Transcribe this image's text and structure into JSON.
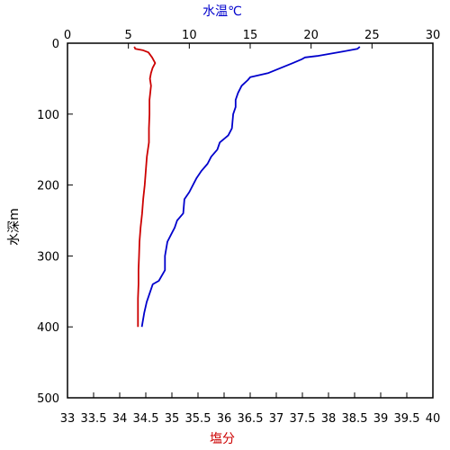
{
  "chart_data": {
    "type": "line",
    "title": "",
    "xlabel_bottom": "塩分",
    "xlabel_top": "水温℃",
    "ylabel": "水深m",
    "xlim_bottom": [
      33,
      40
    ],
    "xlim_top": [
      0,
      30
    ],
    "ylim": [
      0,
      500
    ],
    "y_inverted": true,
    "grid": false,
    "legend": "none",
    "x_bottom_ticks": [
      "33",
      "33.5",
      "34",
      "34.5",
      "35",
      "35.5",
      "36",
      "36.5",
      "37",
      "37.5",
      "38",
      "38.5",
      "39",
      "39.5",
      "40"
    ],
    "x_top_ticks": [
      "0",
      "5",
      "10",
      "15",
      "20",
      "25",
      "30"
    ],
    "y_ticks": [
      "0",
      "100",
      "200",
      "300",
      "400",
      "500"
    ],
    "colors": {
      "salinity": "#cc0000",
      "temperature": "#0000cc",
      "xlabel_bottom": "#cc0000",
      "xlabel_top": "#0000cc"
    },
    "series": [
      {
        "axis": "bottom",
        "color": "#cc0000",
        "points": [
          {
            "x": 34.28,
            "y": 5
          },
          {
            "x": 34.3,
            "y": 8
          },
          {
            "x": 34.45,
            "y": 10
          },
          {
            "x": 34.55,
            "y": 13
          },
          {
            "x": 34.62,
            "y": 20
          },
          {
            "x": 34.68,
            "y": 28
          },
          {
            "x": 34.63,
            "y": 35
          },
          {
            "x": 34.6,
            "y": 42
          },
          {
            "x": 34.58,
            "y": 50
          },
          {
            "x": 34.6,
            "y": 60
          },
          {
            "x": 34.57,
            "y": 80
          },
          {
            "x": 34.57,
            "y": 100
          },
          {
            "x": 34.56,
            "y": 120
          },
          {
            "x": 34.56,
            "y": 140
          },
          {
            "x": 34.52,
            "y": 160
          },
          {
            "x": 34.5,
            "y": 180
          },
          {
            "x": 34.48,
            "y": 200
          },
          {
            "x": 34.45,
            "y": 220
          },
          {
            "x": 34.43,
            "y": 240
          },
          {
            "x": 34.4,
            "y": 260
          },
          {
            "x": 34.38,
            "y": 280
          },
          {
            "x": 34.37,
            "y": 300
          },
          {
            "x": 34.36,
            "y": 320
          },
          {
            "x": 34.36,
            "y": 340
          },
          {
            "x": 34.35,
            "y": 360
          },
          {
            "x": 34.35,
            "y": 380
          },
          {
            "x": 34.35,
            "y": 400
          }
        ]
      },
      {
        "axis": "top",
        "color": "#0000cc",
        "points": [
          {
            "x": 24.0,
            "y": 5
          },
          {
            "x": 23.8,
            "y": 8
          },
          {
            "x": 22.5,
            "y": 12
          },
          {
            "x": 20.5,
            "y": 18
          },
          {
            "x": 19.5,
            "y": 20
          },
          {
            "x": 19.2,
            "y": 23
          },
          {
            "x": 18.5,
            "y": 28
          },
          {
            "x": 17.5,
            "y": 35
          },
          {
            "x": 16.5,
            "y": 42
          },
          {
            "x": 15.0,
            "y": 48
          },
          {
            "x": 14.8,
            "y": 52
          },
          {
            "x": 14.3,
            "y": 60
          },
          {
            "x": 14.0,
            "y": 70
          },
          {
            "x": 13.8,
            "y": 80
          },
          {
            "x": 13.8,
            "y": 90
          },
          {
            "x": 13.6,
            "y": 100
          },
          {
            "x": 13.5,
            "y": 120
          },
          {
            "x": 13.2,
            "y": 130
          },
          {
            "x": 12.5,
            "y": 140
          },
          {
            "x": 12.3,
            "y": 150
          },
          {
            "x": 11.8,
            "y": 160
          },
          {
            "x": 11.5,
            "y": 170
          },
          {
            "x": 11.0,
            "y": 180
          },
          {
            "x": 10.6,
            "y": 190
          },
          {
            "x": 10.3,
            "y": 200
          },
          {
            "x": 10.0,
            "y": 210
          },
          {
            "x": 9.6,
            "y": 220
          },
          {
            "x": 9.5,
            "y": 240
          },
          {
            "x": 9.0,
            "y": 250
          },
          {
            "x": 8.8,
            "y": 260
          },
          {
            "x": 8.5,
            "y": 270
          },
          {
            "x": 8.2,
            "y": 280
          },
          {
            "x": 8.0,
            "y": 300
          },
          {
            "x": 8.0,
            "y": 320
          },
          {
            "x": 7.5,
            "y": 335
          },
          {
            "x": 7.0,
            "y": 340
          },
          {
            "x": 6.8,
            "y": 350
          },
          {
            "x": 6.5,
            "y": 365
          },
          {
            "x": 6.3,
            "y": 380
          },
          {
            "x": 6.1,
            "y": 400
          }
        ]
      }
    ]
  }
}
